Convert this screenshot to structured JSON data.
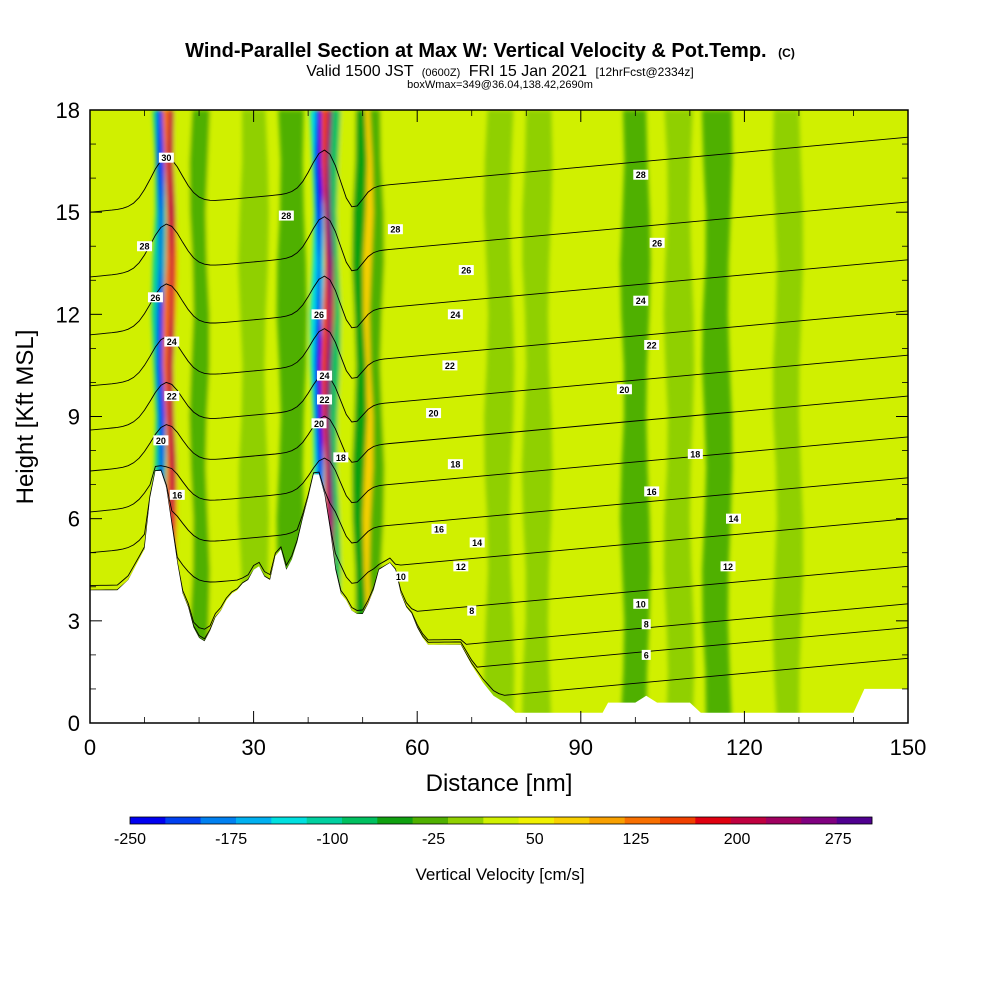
{
  "chart_data": {
    "type": "heatmap",
    "title": "Wind-Parallel Section at Max W: Vertical Velocity & Pot.Temp.",
    "title_mark": "(C)",
    "subtitle": {
      "main_a": "Valid 1500 JST",
      "paren": "(0600Z)",
      "main_b": "FRI 15 Jan 2021",
      "bracket": "[12hrFcst@2334z]"
    },
    "info_line": "boxWmax=349@36.04,138.42,2690m",
    "xlabel": "Distance [nm]",
    "ylabel": "Height [Kft MSL]",
    "xlim": [
      0,
      150
    ],
    "ylim": [
      0,
      18
    ],
    "x_ticks": [
      "0",
      "30",
      "60",
      "90",
      "120",
      "150"
    ],
    "y_ticks": [
      "0",
      "3",
      "6",
      "9",
      "12",
      "15",
      "18"
    ],
    "colorbar": {
      "label": "Vertical Velocity [cm/s]",
      "range": [
        -250,
        300
      ],
      "tick_labels": [
        "-250",
        "-175",
        "-100",
        "-25",
        "50",
        "125",
        "200",
        "275"
      ],
      "colors": [
        "#0000f0",
        "#0040f0",
        "#0080f0",
        "#00b0f0",
        "#00e0e0",
        "#00d0a0",
        "#00c060",
        "#10a010",
        "#50b000",
        "#90d000",
        "#d0f000",
        "#f0f000",
        "#f8d000",
        "#f8a000",
        "#f87000",
        "#f04000",
        "#e00010",
        "#c00040",
        "#a00060",
        "#800080",
        "#500090"
      ]
    },
    "terrain_profile": {
      "x": [
        0,
        5,
        7,
        10,
        11,
        12,
        13,
        14,
        15,
        16,
        17,
        18,
        19,
        20,
        21,
        22,
        23,
        24,
        25,
        26,
        27,
        28,
        29,
        30,
        31,
        32,
        33,
        34,
        35,
        36,
        37,
        38,
        39,
        40,
        41,
        42,
        43,
        44,
        45,
        46,
        47,
        48,
        49,
        50,
        51,
        52,
        53,
        54,
        55,
        56,
        57,
        58,
        59,
        60,
        61,
        62,
        63,
        64,
        65,
        66,
        67,
        68,
        69,
        70,
        72,
        74,
        76,
        78,
        80,
        90,
        94,
        95,
        100,
        102,
        104,
        110,
        112,
        114,
        118,
        125,
        130,
        135,
        140,
        142,
        150
      ],
      "height_kft": [
        3.9,
        3.9,
        4.2,
        5.1,
        6.6,
        7.4,
        7.4,
        6.9,
        5.8,
        4.7,
        3.8,
        3.4,
        2.8,
        2.5,
        2.4,
        2.7,
        3.1,
        3.3,
        3.6,
        3.8,
        3.9,
        4.1,
        4.2,
        4.5,
        4.6,
        4.3,
        4.2,
        4.9,
        5.1,
        4.5,
        4.8,
        5.3,
        6.0,
        6.6,
        7.3,
        7.3,
        6.7,
        5.7,
        4.5,
        3.8,
        3.6,
        3.3,
        3.2,
        3.2,
        3.5,
        3.9,
        4.5,
        4.6,
        4.7,
        4.5,
        3.8,
        3.4,
        3.2,
        2.8,
        2.5,
        2.3,
        2.3,
        2.3,
        2.3,
        2.3,
        2.3,
        2.3,
        2.0,
        1.7,
        1.2,
        0.8,
        0.6,
        0.3,
        0.3,
        0.3,
        0.3,
        0.6,
        0.6,
        0.8,
        0.6,
        0.6,
        0.3,
        0.3,
        0.3,
        0.3,
        0.3,
        0.3,
        0.3,
        1.0,
        1.0
      ]
    },
    "wave_bands": [
      {
        "x": 13,
        "w": -200
      },
      {
        "x": 15,
        "w": 220
      },
      {
        "x": 18,
        "w": 60
      },
      {
        "x": 21,
        "w": -60
      },
      {
        "x": 24,
        "w": 30
      },
      {
        "x": 30,
        "w": 20
      },
      {
        "x": 37,
        "w": -40
      },
      {
        "x": 42,
        "w": -260
      },
      {
        "x": 44,
        "w": 260
      },
      {
        "x": 46,
        "w": -150
      },
      {
        "x": 48,
        "w": 40
      },
      {
        "x": 50,
        "w": -120
      },
      {
        "x": 52,
        "w": 140
      },
      {
        "x": 54,
        "w": -50
      },
      {
        "x": 56,
        "w": 60
      },
      {
        "x": 70,
        "w": 25
      },
      {
        "x": 75,
        "w": -25
      },
      {
        "x": 82,
        "w": -20
      },
      {
        "x": 100,
        "w": -30
      },
      {
        "x": 108,
        "w": 20
      },
      {
        "x": 115,
        "w": -30
      },
      {
        "x": 128,
        "w": -25
      },
      {
        "x": 142,
        "w": 45
      }
    ],
    "theta_isentropes": [
      {
        "theta": 6,
        "y_far": 1.9
      },
      {
        "theta": 8,
        "y_far": 2.8
      },
      {
        "theta": 10,
        "y_far": 3.5
      },
      {
        "theta": 12,
        "y_far": 4.6
      },
      {
        "theta": 14,
        "y_far": 6.0
      },
      {
        "theta": 16,
        "y_far": 7.2
      },
      {
        "theta": 18,
        "y_far": 8.4
      },
      {
        "theta": 20,
        "y_far": 9.6
      },
      {
        "theta": 22,
        "y_far": 10.8
      },
      {
        "theta": 24,
        "y_far": 12.1
      },
      {
        "theta": 26,
        "y_far": 13.6
      },
      {
        "theta": 28,
        "y_far": 15.3
      },
      {
        "theta": 30,
        "y_far": 17.2
      }
    ],
    "contour_labels": [
      {
        "text": "6",
        "x": 102,
        "y": 2.0
      },
      {
        "text": "8",
        "x": 70,
        "y": 3.3
      },
      {
        "text": "8",
        "x": 102,
        "y": 2.9
      },
      {
        "text": "10",
        "x": 57,
        "y": 4.3
      },
      {
        "text": "10",
        "x": 101,
        "y": 3.5
      },
      {
        "text": "12",
        "x": 68,
        "y": 4.6
      },
      {
        "text": "12",
        "x": 117,
        "y": 4.6
      },
      {
        "text": "14",
        "x": 71,
        "y": 5.3
      },
      {
        "text": "14",
        "x": 118,
        "y": 6.0
      },
      {
        "text": "16",
        "x": 16,
        "y": 6.7
      },
      {
        "text": "16",
        "x": 64,
        "y": 5.7
      },
      {
        "text": "16",
        "x": 103,
        "y": 6.8
      },
      {
        "text": "18",
        "x": 46,
        "y": 7.8
      },
      {
        "text": "18",
        "x": 67,
        "y": 7.6
      },
      {
        "text": "18",
        "x": 111,
        "y": 7.9
      },
      {
        "text": "20",
        "x": 13,
        "y": 8.3
      },
      {
        "text": "20",
        "x": 42,
        "y": 8.8
      },
      {
        "text": "20",
        "x": 63,
        "y": 9.1
      },
      {
        "text": "20",
        "x": 98,
        "y": 9.8
      },
      {
        "text": "22",
        "x": 15,
        "y": 9.6
      },
      {
        "text": "22",
        "x": 43,
        "y": 9.5
      },
      {
        "text": "22",
        "x": 66,
        "y": 10.5
      },
      {
        "text": "22",
        "x": 103,
        "y": 11.1
      },
      {
        "text": "24",
        "x": 15,
        "y": 11.2
      },
      {
        "text": "24",
        "x": 43,
        "y": 10.2
      },
      {
        "text": "24",
        "x": 67,
        "y": 12.0
      },
      {
        "text": "24",
        "x": 101,
        "y": 12.4
      },
      {
        "text": "26",
        "x": 12,
        "y": 12.5
      },
      {
        "text": "26",
        "x": 42,
        "y": 12.0
      },
      {
        "text": "26",
        "x": 69,
        "y": 13.3
      },
      {
        "text": "26",
        "x": 104,
        "y": 14.1
      },
      {
        "text": "28",
        "x": 10,
        "y": 14.0
      },
      {
        "text": "28",
        "x": 36,
        "y": 14.9
      },
      {
        "text": "28",
        "x": 56,
        "y": 14.5
      },
      {
        "text": "28",
        "x": 101,
        "y": 16.1
      },
      {
        "text": "30",
        "x": 14,
        "y": 16.6
      }
    ]
  }
}
